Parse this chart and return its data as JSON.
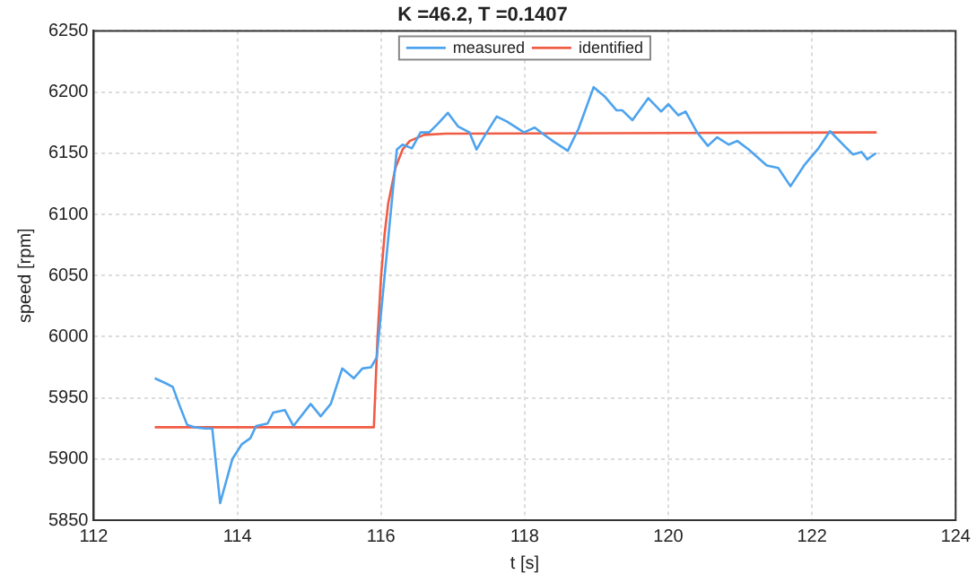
{
  "chart_data": {
    "type": "line",
    "title": "K =46.2, T =0.1407",
    "xlabel": "t [s]",
    "ylabel": "speed [rpm]",
    "series": [
      {
        "name": "measured",
        "color": "#4da3ee",
        "x": [
          112.85,
          113.0,
          113.1,
          113.2,
          113.3,
          113.4,
          113.55,
          113.65,
          113.76,
          113.93,
          114.06,
          114.18,
          114.26,
          114.42,
          114.5,
          114.66,
          114.78,
          115.02,
          115.16,
          115.3,
          115.46,
          115.62,
          115.74,
          115.86,
          115.94,
          116.22,
          116.3,
          116.43,
          116.55,
          116.67,
          116.79,
          116.93,
          117.07,
          117.23,
          117.33,
          117.45,
          117.61,
          117.75,
          117.99,
          118.14,
          118.25,
          118.39,
          118.6,
          118.75,
          118.96,
          119.12,
          119.28,
          119.36,
          119.5,
          119.72,
          119.9,
          120.0,
          120.14,
          120.24,
          120.4,
          120.55,
          120.68,
          120.84,
          120.96,
          121.12,
          121.37,
          121.53,
          121.7,
          121.89,
          122.09,
          122.25,
          122.45,
          122.57,
          122.69,
          122.77,
          122.89
        ],
        "values": [
          5966,
          5962,
          5959,
          5943,
          5928,
          5926,
          5925,
          5925,
          5864,
          5900,
          5912,
          5917,
          5927,
          5929,
          5938,
          5940,
          5927,
          5945,
          5935,
          5945,
          5974,
          5966,
          5974,
          5975,
          5983,
          6153,
          6157,
          6154,
          6167,
          6167,
          6174,
          6183,
          6172,
          6167,
          6153,
          6165,
          6180,
          6176,
          6167,
          6171,
          6166,
          6160,
          6152,
          6170,
          6204,
          6196,
          6185,
          6185,
          6177,
          6195,
          6184,
          6190,
          6181,
          6184,
          6167,
          6156,
          6163,
          6157,
          6160,
          6153,
          6140,
          6138,
          6123,
          6140,
          6154,
          6168,
          6156,
          6149,
          6151,
          6145,
          6150
        ]
      },
      {
        "name": "identified",
        "color": "#f05c44",
        "x": [
          112.85,
          115.9,
          115.95,
          116.0,
          116.05,
          116.1,
          116.2,
          116.3,
          116.4,
          116.6,
          116.9,
          122.9
        ],
        "values": [
          5926,
          5926,
          5998,
          6049,
          6084,
          6109,
          6138,
          6153,
          6160,
          6165,
          6166,
          6167
        ]
      }
    ],
    "xlim": [
      112,
      124
    ],
    "xticks": [
      112,
      114,
      116,
      118,
      120,
      122,
      124
    ],
    "ylim": [
      5850,
      6250
    ],
    "yticks": [
      5850,
      5900,
      5950,
      6000,
      6050,
      6100,
      6150,
      6200,
      6250
    ],
    "grid": true,
    "legend": "top",
    "marker": "none",
    "line_style": "solid"
  }
}
